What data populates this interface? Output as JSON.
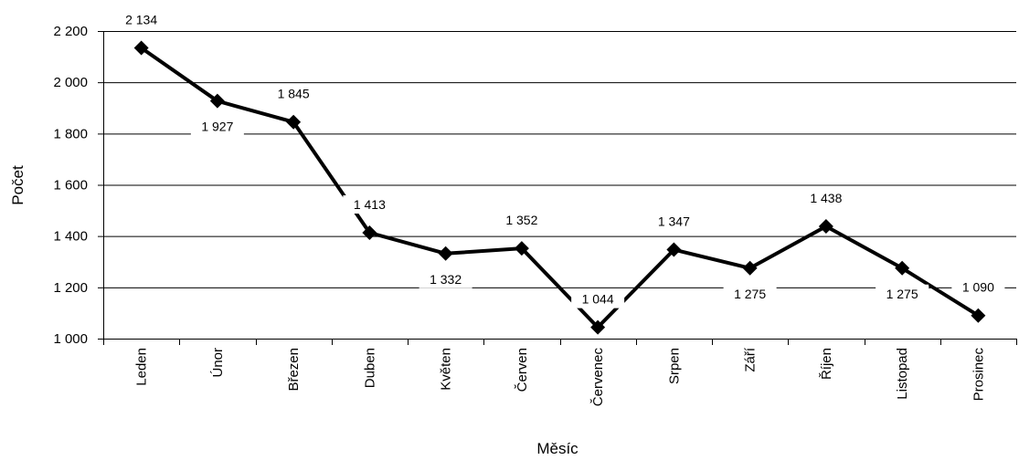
{
  "chart_data": {
    "type": "line",
    "title": "",
    "xlabel": "Měsíc",
    "ylabel": "Počet",
    "ylim": [
      1000,
      2200
    ],
    "yticks": [
      1000,
      1200,
      1400,
      1600,
      1800,
      2000,
      2200
    ],
    "ytick_labels": [
      "1 000",
      "1 200",
      "1 400",
      "1 600",
      "1 800",
      "2 000",
      "2 200"
    ],
    "grid": true,
    "legend": "none",
    "categories": [
      "Leden",
      "Únor",
      "Březen",
      "Duben",
      "Květen",
      "Červen",
      "Červenec",
      "Srpen",
      "Září",
      "Říjen",
      "Listopad",
      "Prosinec"
    ],
    "values": [
      2134,
      1927,
      1845,
      1413,
      1332,
      1352,
      1044,
      1347,
      1275,
      1438,
      1275,
      1090
    ],
    "value_labels": [
      "2 134",
      "1 927",
      "1 845",
      "1 413",
      "1 332",
      "1 352",
      "1 044",
      "1 347",
      "1 275",
      "1 438",
      "1 275",
      "1 090"
    ],
    "label_positions": [
      "above",
      "below",
      "above",
      "above",
      "below",
      "above",
      "above",
      "above",
      "below",
      "above",
      "below",
      "above"
    ],
    "colors": {
      "line": "#000000",
      "grid": "#000000",
      "label_bg": "#ffffff"
    }
  }
}
